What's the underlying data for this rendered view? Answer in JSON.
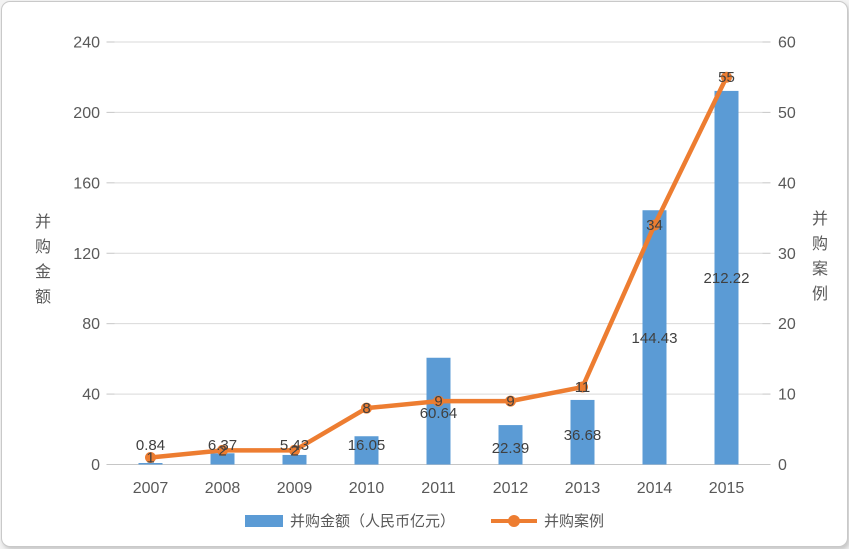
{
  "chart_data": {
    "type": "bar",
    "combo": "bar+line",
    "title": "",
    "categories": [
      "2007",
      "2008",
      "2009",
      "2010",
      "2011",
      "2012",
      "2013",
      "2014",
      "2015"
    ],
    "series": [
      {
        "name": "并购金额（人民币亿元）",
        "type": "bar",
        "axis": "left",
        "color": "#5b9bd5",
        "values": [
          0.84,
          6.37,
          5.43,
          16.05,
          60.64,
          22.39,
          36.68,
          144.43,
          212.22
        ],
        "labels": [
          "0.84",
          "6.37",
          "5.43",
          "16.05",
          "60.64",
          "22.39",
          "36.68",
          "144.43",
          "212.22"
        ]
      },
      {
        "name": "并购案例",
        "type": "line",
        "axis": "right",
        "color": "#ed7d31",
        "values": [
          1,
          2,
          2,
          8,
          9,
          9,
          11,
          34,
          55
        ],
        "labels": [
          "1",
          "2",
          "2",
          "8",
          "9",
          "9",
          "11",
          "34",
          "55"
        ]
      }
    ],
    "left_axis": {
      "title": "并购金额",
      "min": 0,
      "max": 240,
      "step": 40,
      "ticks": [
        "0",
        "40",
        "80",
        "120",
        "160",
        "200",
        "240"
      ]
    },
    "right_axis": {
      "title": "并购案例",
      "min": 0,
      "max": 60,
      "step": 10,
      "ticks": [
        "0",
        "10",
        "20",
        "30",
        "40",
        "50",
        "60"
      ]
    },
    "legend": [
      {
        "label": "并购金额（人民币亿元）",
        "marker": "rect",
        "color": "#5b9bd5"
      },
      {
        "label": "并购案例",
        "marker": "line-dot",
        "color": "#ed7d31"
      }
    ],
    "legend_position": "bottom",
    "grid": true,
    "colors": {
      "bar": "#5b9bd5",
      "line": "#ed7d31",
      "grid": "#d9d9d9",
      "axis_line": "#c6c6c6",
      "tick_text": "#595959",
      "data_label": "#404040"
    }
  }
}
